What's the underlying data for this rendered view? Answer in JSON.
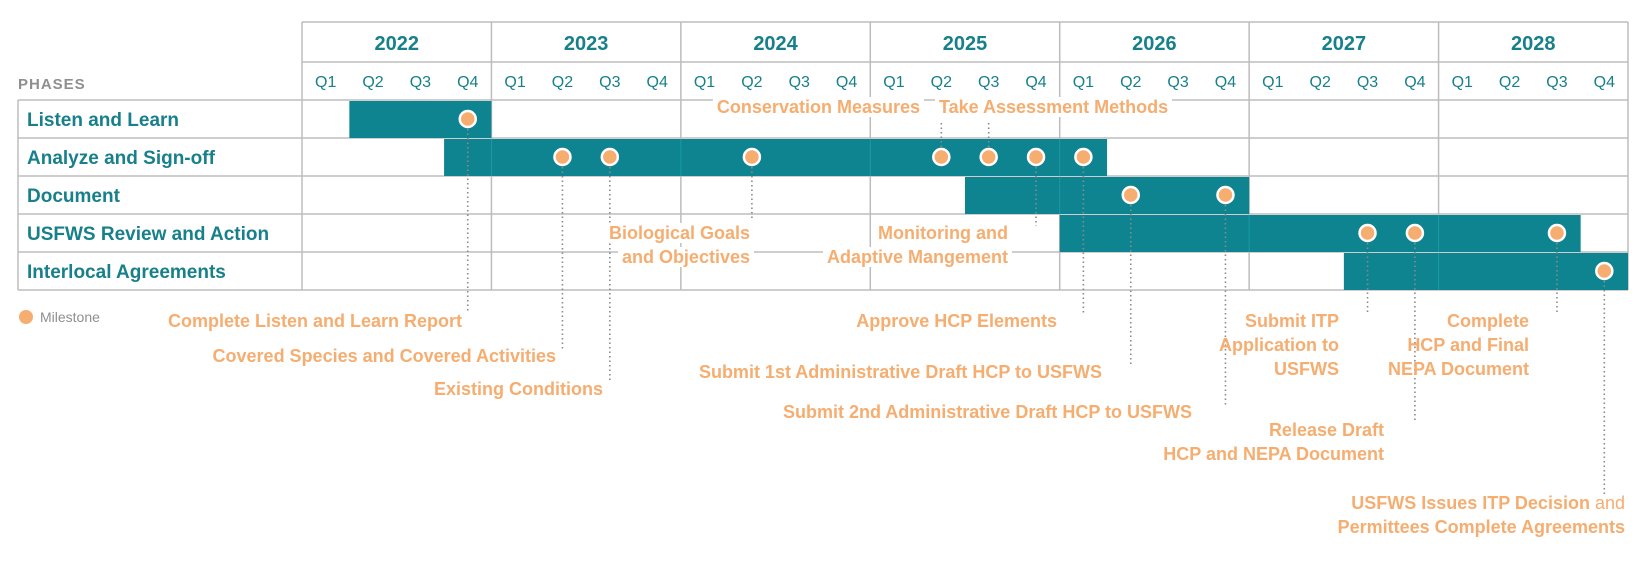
{
  "chart_data": {
    "type": "gantt",
    "header_label": "PHASES",
    "years": [
      "2022",
      "2023",
      "2024",
      "2025",
      "2026",
      "2027",
      "2028"
    ],
    "quarters": [
      "Q1",
      "Q2",
      "Q3",
      "Q4"
    ],
    "legend": "Milestone",
    "colors": {
      "bar": "#0e8490",
      "milestone": "#f5ad70",
      "text": "#17808a",
      "grid": "#bdbdbd",
      "muted": "#8f8f8f"
    },
    "phases": [
      {
        "name": "Listen and Learn",
        "bars": [
          {
            "start": "2022-Q2",
            "end": "2022-Q4"
          }
        ],
        "milestones": [
          "2022-Q4"
        ]
      },
      {
        "name": "Analyze and Sign-off",
        "bars": [
          {
            "start": "2022-Q4",
            "end": "2026-Q1"
          }
        ],
        "milestones": [
          "2023-Q2",
          "2023-Q3",
          "2024-Q2",
          "2025-Q2",
          "2025-Q3",
          "2025-Q4",
          "2026-Q1"
        ]
      },
      {
        "name": "Document",
        "bars": [
          {
            "start": "2025-Q3",
            "end": "2026-Q4"
          }
        ],
        "milestones": [
          "2026-Q2",
          "2026-Q4"
        ]
      },
      {
        "name": "USFWS Review and Action",
        "bars": [
          {
            "start": "2026-Q1",
            "end": "2028-Q3"
          }
        ],
        "milestones": [
          "2027-Q3",
          "2027-Q4",
          "2028-Q3"
        ]
      },
      {
        "name": "Interlocal Agreements",
        "bars": [
          {
            "start": "2027-Q3",
            "end": "2028-Q4"
          }
        ],
        "milestones": [
          "2028-Q4"
        ]
      }
    ],
    "annotations": [
      {
        "milestone": "2022-Q4",
        "phase": "Listen and Learn",
        "lines": [
          "Complete Listen and Learn Report"
        ]
      },
      {
        "milestone": "2023-Q2",
        "phase": "Analyze and Sign-off",
        "lines": [
          "Covered Species and Covered Activities"
        ]
      },
      {
        "milestone": "2023-Q3",
        "phase": "Analyze and Sign-off",
        "lines": [
          "Existing Conditions"
        ]
      },
      {
        "milestone": "2024-Q2",
        "phase": "Analyze and Sign-off",
        "lines": [
          "Biological Goals",
          "and Objectives"
        ]
      },
      {
        "milestone": "2025-Q2",
        "phase": "Analyze and Sign-off",
        "lines": [
          "Conservation Measures"
        ]
      },
      {
        "milestone": "2025-Q3",
        "phase": "Analyze and Sign-off",
        "lines": [
          "Take Assessment Methods"
        ]
      },
      {
        "milestone": "2025-Q4",
        "phase": "Analyze and Sign-off",
        "lines": [
          "Monitoring and",
          "Adaptive Mangement"
        ]
      },
      {
        "milestone": "2026-Q1",
        "phase": "Analyze and Sign-off",
        "lines": [
          "Approve HCP Elements"
        ]
      },
      {
        "milestone": "2026-Q2",
        "phase": "Document",
        "lines": [
          "Submit 1st Administrative Draft HCP to USFWS"
        ]
      },
      {
        "milestone": "2026-Q4",
        "phase": "Document",
        "lines": [
          "Submit 2nd Administrative Draft HCP to USFWS"
        ]
      },
      {
        "milestone": "2027-Q3",
        "phase": "USFWS Review and Action",
        "lines": [
          "Submit ITP",
          "Application to",
          "USFWS"
        ]
      },
      {
        "milestone": "2027-Q4",
        "phase": "USFWS Review and Action",
        "lines": [
          "Release Draft",
          "HCP and NEPA Document"
        ]
      },
      {
        "milestone": "2028-Q3",
        "phase": "USFWS Review and Action",
        "lines": [
          "Complete",
          "HCP and Final",
          "NEPA Document"
        ]
      },
      {
        "milestone": "2028-Q4",
        "phase": "Interlocal Agreements",
        "lines": [
          "USFWS Issues ITP Decision and",
          "Permittees Complete Agreements"
        ]
      }
    ]
  }
}
